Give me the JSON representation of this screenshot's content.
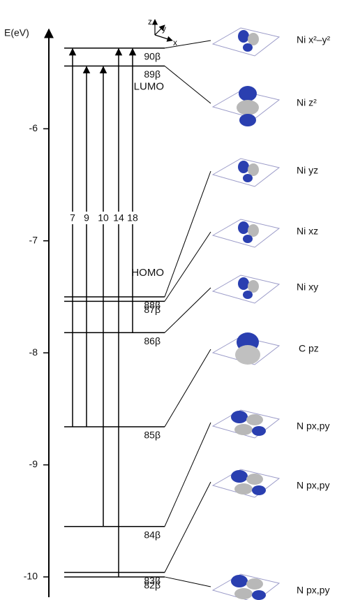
{
  "chart_data": {
    "type": "energy_levels",
    "ylabel": "E(eV)",
    "ylim": [
      -10.15,
      -5.1
    ],
    "yticks": [
      -6,
      -7,
      -8,
      -9,
      -10
    ],
    "levels": [
      {
        "label": "90β",
        "value": -5.28,
        "orbital": "Ni x²–y²"
      },
      {
        "label": "89β",
        "value": -5.44,
        "orbital": "Ni z²",
        "tag": "LUMO"
      },
      {
        "label": "88β",
        "value": -7.5,
        "orbital": "Ni yz",
        "tag": "HOMO"
      },
      {
        "label": "87β",
        "value": -7.54,
        "orbital": "Ni xz"
      },
      {
        "label": "86β",
        "value": -7.82,
        "orbital": "Ni xy"
      },
      {
        "label": "85β",
        "value": -8.66,
        "orbital": "C pz"
      },
      {
        "label": "84β",
        "value": -9.55,
        "orbital": "N px,py"
      },
      {
        "label": "83β",
        "value": -9.96,
        "orbital": "N px,py"
      },
      {
        "label": "82β",
        "value": -10.0,
        "orbital": "N px,py"
      }
    ],
    "transitions": [
      {
        "label": "7",
        "from": -8.66,
        "to": -5.28
      },
      {
        "label": "9",
        "from": -8.66,
        "to": -5.44
      },
      {
        "label": "10",
        "from": -9.55,
        "to": -5.44
      },
      {
        "label": "14",
        "from": -10.0,
        "to": -5.28
      },
      {
        "label": "18",
        "from": -7.82,
        "to": -5.28
      }
    ],
    "axes_labels": {
      "z": "z",
      "y": "y",
      "x": "x"
    }
  }
}
